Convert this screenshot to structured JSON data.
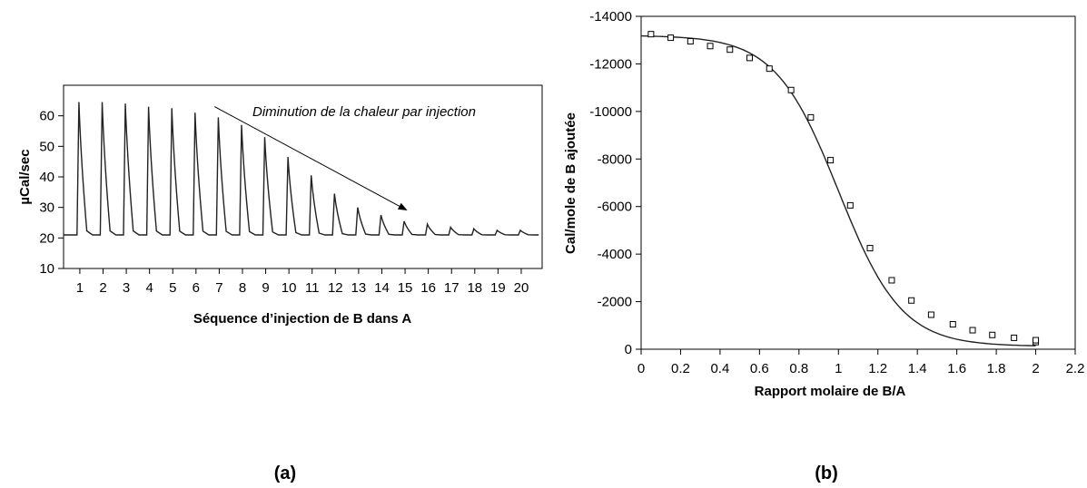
{
  "panels": [
    {
      "label": "(a)"
    },
    {
      "label": "(b)"
    }
  ],
  "chart_data": [
    {
      "type": "line",
      "title": "",
      "xlabel": "Séquence d’injection de B dans A",
      "ylabel": "µCal/sec",
      "xlim": [
        0.3,
        20.9
      ],
      "ylim": [
        10,
        70
      ],
      "xticks": [
        1,
        2,
        3,
        4,
        5,
        6,
        7,
        8,
        9,
        10,
        11,
        12,
        13,
        14,
        15,
        16,
        17,
        18,
        19,
        20
      ],
      "yticks": [
        10,
        20,
        30,
        40,
        50,
        60
      ],
      "baseline": 21,
      "injections": [
        1,
        2,
        3,
        4,
        5,
        6,
        7,
        8,
        9,
        10,
        11,
        12,
        13,
        14,
        15,
        16,
        17,
        18,
        19,
        20
      ],
      "peak_values": [
        64.5,
        64.5,
        64,
        63,
        62.5,
        61,
        59.5,
        57,
        53,
        46.5,
        40.5,
        34.5,
        30,
        27.5,
        25.5,
        24.5,
        23.5,
        23,
        22.5,
        22.5
      ],
      "annotation": {
        "text": "Diminution de la chaleur par injection",
        "from": [
          6.8,
          63
        ],
        "to": [
          15.1,
          29
        ]
      },
      "grid": false
    },
    {
      "type": "scatter",
      "title": "",
      "xlabel": "Rapport molaire de B/A",
      "ylabel": "Cal/mole de B ajoutée",
      "xlim": [
        0,
        2.2
      ],
      "ylim": [
        0,
        -14000
      ],
      "xticks": [
        0,
        0.2,
        0.4,
        0.6,
        0.8,
        1,
        1.2,
        1.4,
        1.6,
        1.8,
        2,
        2.2
      ],
      "yticks": [
        0,
        -2000,
        -4000,
        -6000,
        -8000,
        -10000,
        -12000,
        -14000
      ],
      "points": [
        {
          "x": 0.05,
          "y": -13250
        },
        {
          "x": 0.15,
          "y": -13100
        },
        {
          "x": 0.25,
          "y": -12950
        },
        {
          "x": 0.35,
          "y": -12750
        },
        {
          "x": 0.45,
          "y": -12600
        },
        {
          "x": 0.55,
          "y": -12250
        },
        {
          "x": 0.65,
          "y": -11800
        },
        {
          "x": 0.76,
          "y": -10900
        },
        {
          "x": 0.86,
          "y": -9750
        },
        {
          "x": 0.96,
          "y": -7950
        },
        {
          "x": 1.06,
          "y": -6050
        },
        {
          "x": 1.16,
          "y": -4250
        },
        {
          "x": 1.27,
          "y": -2900
        },
        {
          "x": 1.37,
          "y": -2050
        },
        {
          "x": 1.47,
          "y": -1450
        },
        {
          "x": 1.58,
          "y": -1050
        },
        {
          "x": 1.68,
          "y": -800
        },
        {
          "x": 1.78,
          "y": -600
        },
        {
          "x": 1.89,
          "y": -480
        },
        {
          "x": 2.0,
          "y": -300
        },
        {
          "x": 2.0,
          "y": -380
        }
      ],
      "fit_curve": {
        "top": -13200,
        "bottom": -120,
        "midpoint": 1.0,
        "width": 0.16
      },
      "grid": false
    }
  ]
}
